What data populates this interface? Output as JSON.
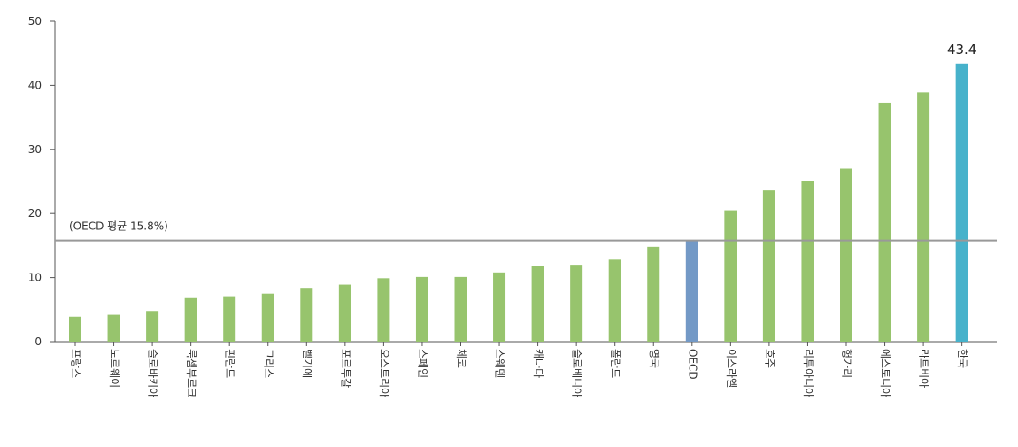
{
  "chart_data": {
    "type": "bar",
    "categories": [
      "프랑스",
      "노르웨이",
      "슬로바키아",
      "룩셈부르크",
      "핀란드",
      "그리스",
      "벨기에",
      "포르투갈",
      "오스트리아",
      "스페인",
      "체코",
      "스웨덴",
      "캐나다",
      "슬로베니아",
      "폴란드",
      "영국",
      "OECD",
      "이스라엘",
      "호주",
      "리투아니아",
      "헝가리",
      "에스토니아",
      "라트비아",
      "한국"
    ],
    "values": [
      3.9,
      4.2,
      4.8,
      6.8,
      7.1,
      7.5,
      8.4,
      8.9,
      9.9,
      10.1,
      10.1,
      10.8,
      11.8,
      12.0,
      12.8,
      14.8,
      15.8,
      20.5,
      23.6,
      25.0,
      27.0,
      37.3,
      38.9,
      43.4
    ],
    "colors": {
      "default": "#97c46d",
      "OECD": "#7399c6",
      "한국": "#47b2cb",
      "reference_line": "#999999",
      "axis": "#555555"
    },
    "highlight_value_label": "43.4",
    "reference_line": {
      "value": 15.8,
      "label": "(OECD 평균 15.8%)"
    },
    "ylim": [
      0,
      50
    ],
    "yticks": [
      0,
      10,
      20,
      30,
      40,
      50
    ],
    "grid": false,
    "title": "",
    "xlabel": "",
    "ylabel": ""
  }
}
